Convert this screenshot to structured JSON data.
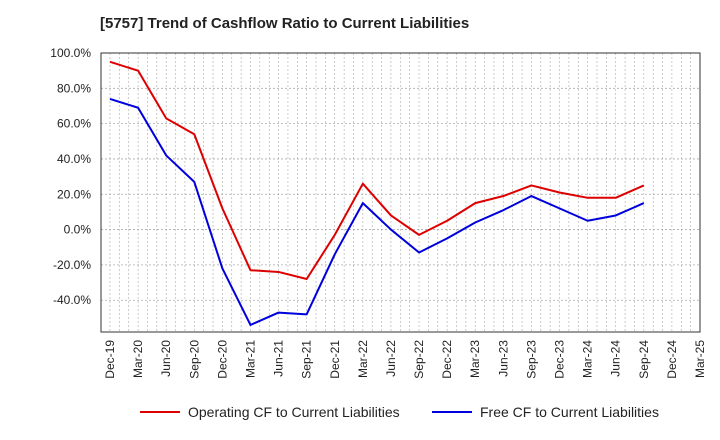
{
  "title": "[5757]  Trend of Cashflow Ratio to Current Liabilities",
  "colors": {
    "operating": "#dd0000",
    "free": "#0000dd",
    "grid": "#aaaaaa",
    "axis": "#333333"
  },
  "chart_data": {
    "type": "line",
    "title": "[5757]  Trend of Cashflow Ratio to Current Liabilities",
    "xlabel": "",
    "ylabel": "",
    "ylim": [
      -58,
      100
    ],
    "grid": true,
    "legend_position": "bottom",
    "x_ticks": [
      "Dec-19",
      "Mar-20",
      "Jun-20",
      "Sep-20",
      "Dec-20",
      "Mar-21",
      "Jun-21",
      "Sep-21",
      "Dec-21",
      "Mar-22",
      "Jun-22",
      "Sep-22",
      "Dec-22",
      "Mar-23",
      "Jun-23",
      "Sep-23",
      "Dec-23",
      "Mar-24",
      "Jun-24",
      "Sep-24",
      "Dec-24",
      "Mar-25"
    ],
    "y_ticks": [
      "100.0%",
      "80.0%",
      "60.0%",
      "40.0%",
      "20.0%",
      "0.0%",
      "-20.0%",
      "-40.0%"
    ],
    "y_tick_values": [
      100,
      80,
      60,
      40,
      20,
      0,
      -20,
      -40
    ],
    "x": [
      "Dec-19",
      "Mar-20",
      "Jun-20",
      "Sep-20",
      "Dec-20",
      "Mar-21",
      "Jun-21",
      "Sep-21",
      "Dec-21",
      "Mar-22",
      "Jun-22",
      "Sep-22",
      "Dec-22",
      "Mar-23",
      "Jun-23",
      "Sep-23",
      "Dec-23",
      "Mar-24",
      "Jun-24",
      "Sep-24"
    ],
    "series": [
      {
        "name": "Operating CF to Current Liabilities",
        "values": [
          95,
          90,
          63,
          54,
          12,
          -23,
          -24,
          -28,
          -3,
          26,
          8,
          -3,
          5,
          15,
          19,
          25,
          21,
          18,
          18,
          25
        ]
      },
      {
        "name": "Free CF to Current Liabilities",
        "values": [
          74,
          69,
          42,
          27,
          -22,
          -54,
          -47,
          -48,
          -14,
          15,
          0,
          -13,
          -5,
          4,
          11,
          19,
          12,
          5,
          8,
          15
        ]
      }
    ]
  }
}
